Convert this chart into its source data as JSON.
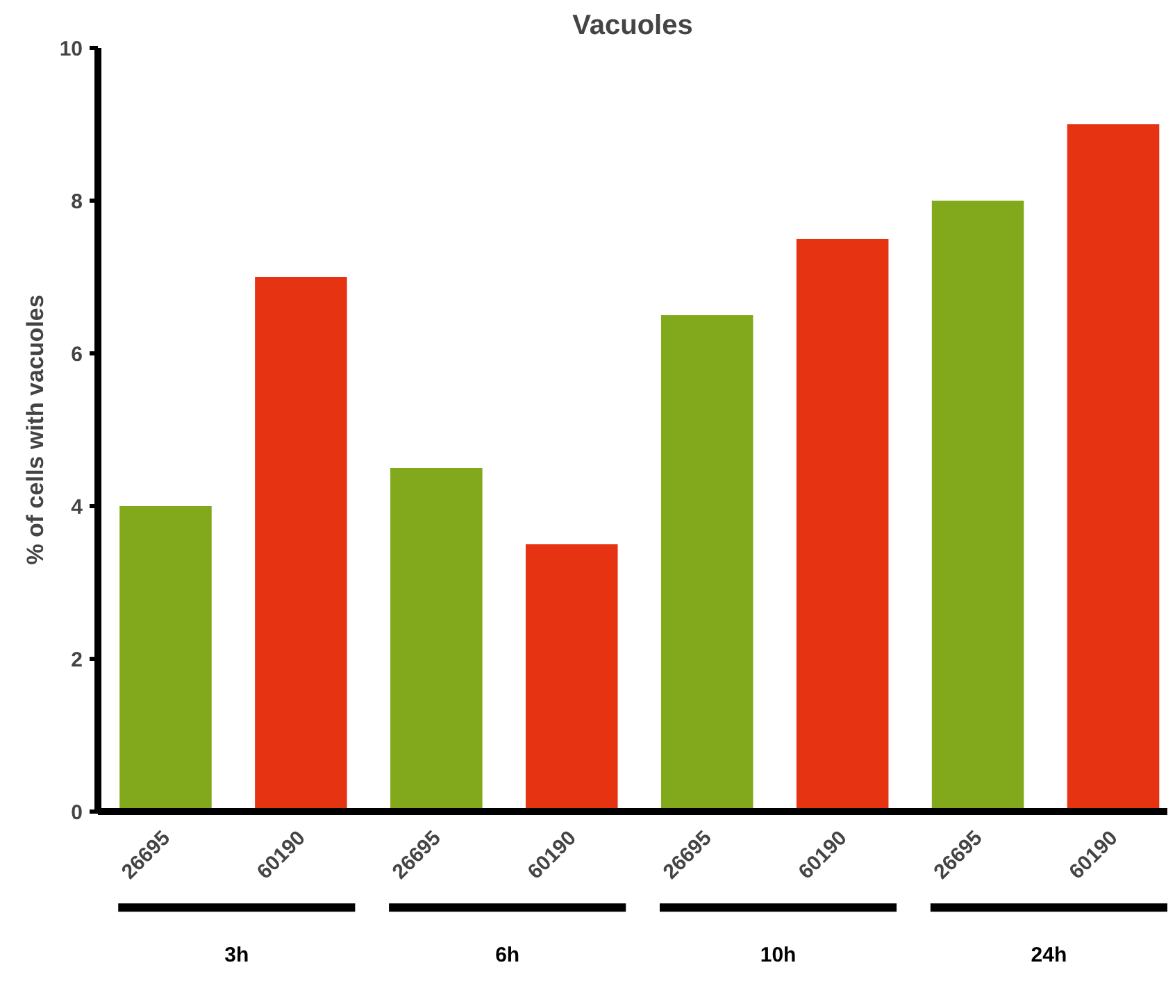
{
  "chart_data": {
    "type": "bar",
    "title": "Vacuoles",
    "ylabel": "% of cells with vacuoles",
    "categories": [
      "26695",
      "60190",
      "26695",
      "60190",
      "26695",
      "60190",
      "26695",
      "60190"
    ],
    "values": [
      4,
      7,
      4.5,
      3.5,
      6.5,
      7.5,
      8,
      9
    ],
    "colors": [
      "#82a81c",
      "#e63312",
      "#82a81c",
      "#e63312",
      "#82a81c",
      "#e63312",
      "#82a81c",
      "#e63312"
    ],
    "ylim": [
      0,
      10
    ],
    "yticks": [
      0,
      2,
      4,
      6,
      8,
      10
    ],
    "grid": false,
    "annotations": [
      "3h",
      "6h",
      "10h",
      "24h"
    ]
  }
}
